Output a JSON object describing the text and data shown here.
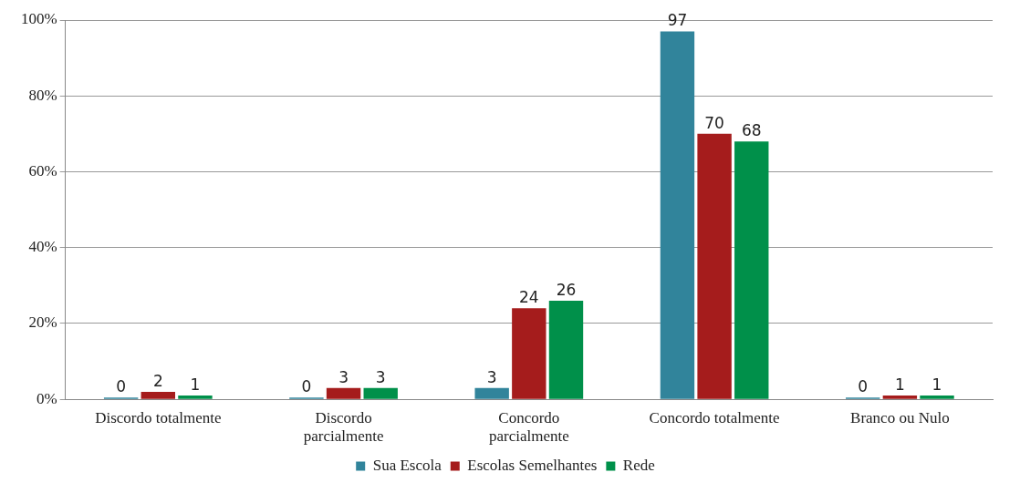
{
  "chart_data": {
    "type": "bar",
    "categories": [
      "Discordo totalmente",
      "Discordo parcialmente",
      "Concordo parcialmente",
      "Concordo totalmente",
      "Branco ou Nulo"
    ],
    "series": [
      {
        "name": "Sua Escola",
        "color": "#31849b",
        "values": [
          0,
          0,
          3,
          97,
          0
        ]
      },
      {
        "name": "Escolas Semelhantes",
        "color": "#a51c1c",
        "values": [
          2,
          3,
          24,
          70,
          1
        ]
      },
      {
        "name": "Rede",
        "color": "#00904a",
        "values": [
          1,
          3,
          26,
          68,
          1
        ]
      }
    ],
    "ylim": [
      0,
      100
    ],
    "yticks": [
      {
        "value": 0,
        "label": "0%"
      },
      {
        "value": 20,
        "label": "20%"
      },
      {
        "value": 40,
        "label": "40%"
      },
      {
        "value": 60,
        "label": "60%"
      },
      {
        "value": 80,
        "label": "80%"
      },
      {
        "value": 100,
        "label": "100%"
      }
    ],
    "grid": "y",
    "legend": "bottom",
    "data_labels": true
  }
}
